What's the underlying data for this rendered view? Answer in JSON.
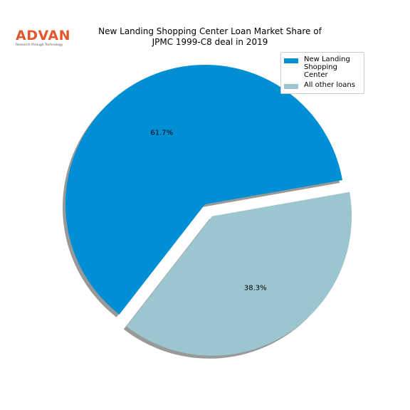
{
  "logo": {
    "text": "ADVAN",
    "tagline": "Research through Technology"
  },
  "chart_data": {
    "type": "pie",
    "title_lines": [
      "New Landing Shopping Center Loan Market Share of",
      "JPMC 1999-C8 deal in 2019"
    ],
    "slices": [
      {
        "label": "New Landing Shopping Center",
        "legend_lines": [
          "New Landing",
          "Shopping Center"
        ],
        "value": 61.7,
        "pct_label": "61.7%",
        "color": "#008fd5",
        "exploded": false
      },
      {
        "label": "All other loans",
        "legend_lines": [
          "All other loans"
        ],
        "value": 38.3,
        "pct_label": "38.3%",
        "color": "#9bc5cf",
        "exploded": true
      }
    ],
    "shadow": true,
    "legend_position": "top-right"
  }
}
